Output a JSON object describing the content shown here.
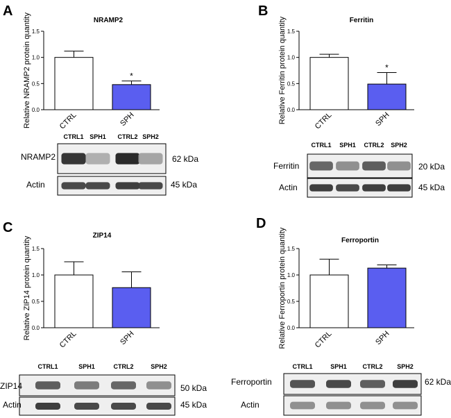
{
  "chart_data": [
    {
      "panel": "A",
      "type": "bar",
      "title": "NRAMP2",
      "ylabel": "Relative NRAMP2 protein quantity",
      "categories": [
        "CTRL",
        "SPH"
      ],
      "values": [
        1.0,
        0.48
      ],
      "errors": [
        0.12,
        0.07
      ],
      "significance": [
        "",
        "*"
      ],
      "ylim": [
        0,
        1.5
      ],
      "yticks": [
        "0.0",
        "0.5",
        "1.0",
        "1.5"
      ],
      "colors": [
        "#ffffff",
        "#5a5ef0"
      ],
      "blot": {
        "lanes": [
          "CTRL1",
          "SPH1",
          "CTRL2",
          "SPH2"
        ],
        "rows": [
          {
            "label": "NRAMP2",
            "size": "62 kDa",
            "intensity": [
              0.9,
              0.3,
              0.95,
              0.35
            ]
          },
          {
            "label": "Actin",
            "size": "45 kDa",
            "intensity": [
              0.8,
              0.8,
              0.85,
              0.8
            ]
          }
        ]
      }
    },
    {
      "panel": "B",
      "type": "bar",
      "title": "Ferritin",
      "ylabel": "Relative Ferritin protein quantity",
      "categories": [
        "CTRL",
        "SPH"
      ],
      "values": [
        1.0,
        0.49
      ],
      "errors": [
        0.06,
        0.22
      ],
      "significance": [
        "",
        "*"
      ],
      "ylim": [
        0,
        1.5
      ],
      "yticks": [
        "0.0",
        "0.5",
        "1.0",
        "1.5"
      ],
      "colors": [
        "#ffffff",
        "#5a5ef0"
      ],
      "blot": {
        "lanes": [
          "CTRL1",
          "SPH1",
          "CTRL2",
          "SPH2"
        ],
        "rows": [
          {
            "label": "Ferritin",
            "size": "20 kDa",
            "intensity": [
              0.65,
              0.45,
              0.7,
              0.45
            ]
          },
          {
            "label": "Actin",
            "size": "45 kDa",
            "intensity": [
              0.85,
              0.8,
              0.85,
              0.85
            ]
          }
        ]
      }
    },
    {
      "panel": "C",
      "type": "bar",
      "title": "ZIP14",
      "ylabel": "Relative ZIP14 protein quantity",
      "categories": [
        "CTRL",
        "SPH"
      ],
      "values": [
        1.0,
        0.76
      ],
      "errors": [
        0.25,
        0.3
      ],
      "significance": [
        "",
        ""
      ],
      "ylim": [
        0,
        1.5
      ],
      "yticks": [
        "0.0",
        "0.5",
        "1.0",
        "1.5"
      ],
      "colors": [
        "#ffffff",
        "#5a5ef0"
      ],
      "blot": {
        "lanes": [
          "CTRL1",
          "SPH1",
          "CTRL2",
          "SPH2"
        ],
        "rows": [
          {
            "label": "ZIP14",
            "size": "50 kDa",
            "intensity": [
              0.7,
              0.55,
              0.65,
              0.45
            ]
          },
          {
            "label": "Actin",
            "size": "45 kDa",
            "intensity": [
              0.85,
              0.8,
              0.8,
              0.8
            ]
          }
        ]
      }
    },
    {
      "panel": "D",
      "type": "bar",
      "title": "Ferroportin",
      "ylabel": "Relative Ferroportin protein quantity",
      "categories": [
        "CTRL",
        "SPH"
      ],
      "values": [
        1.0,
        1.13
      ],
      "errors": [
        0.3,
        0.06
      ],
      "significance": [
        "",
        ""
      ],
      "ylim": [
        0,
        1.5
      ],
      "yticks": [
        "0.0",
        "0.5",
        "1.0",
        "1.5"
      ],
      "colors": [
        "#ffffff",
        "#5a5ef0"
      ],
      "blot": {
        "lanes": [
          "CTRL1",
          "SPH1",
          "CTRL2",
          "SPH2"
        ],
        "rows": [
          {
            "label": "Ferroportin",
            "size": "62 kDa",
            "intensity": [
              0.75,
              0.8,
              0.7,
              0.85
            ]
          },
          {
            "label": "Actin",
            "size": "",
            "intensity": [
              0.45,
              0.45,
              0.45,
              0.45
            ]
          }
        ]
      }
    }
  ]
}
